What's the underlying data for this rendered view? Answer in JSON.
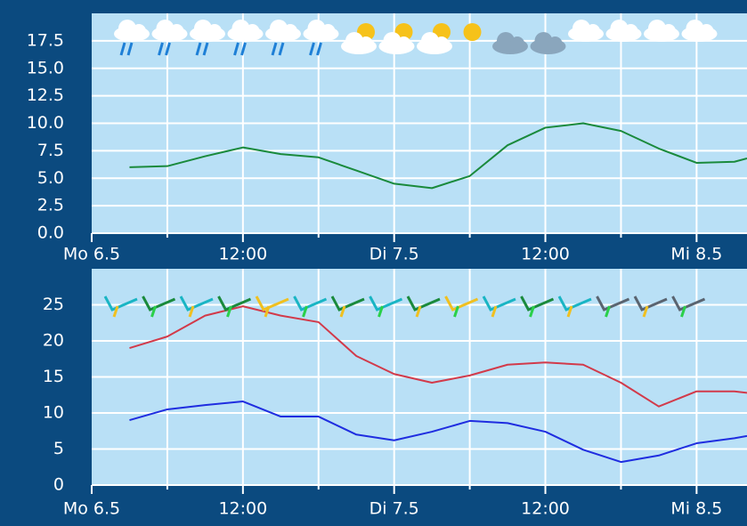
{
  "chart_data": [
    {
      "type": "line",
      "x": [
        3,
        6,
        9,
        12,
        15,
        18,
        21,
        24,
        27,
        30,
        33,
        36,
        39,
        42,
        45,
        48,
        51,
        52
      ],
      "series": [
        {
          "color": "#1a8a3c",
          "values": [
            6.0,
            6.1,
            7.0,
            7.8,
            7.2,
            6.9,
            5.7,
            4.5,
            4.1,
            5.2,
            8.0,
            9.6,
            10.0,
            9.3,
            7.7,
            6.4,
            6.5,
            6.8
          ]
        }
      ],
      "xlim": [
        0,
        52
      ],
      "xticks": [
        {
          "value": 0,
          "label": "Mo 6.5"
        },
        {
          "value": 6,
          "label": null
        },
        {
          "value": 12,
          "label": "12:00"
        },
        {
          "value": 18,
          "label": null
        },
        {
          "value": 24,
          "label": "Di 7.5"
        },
        {
          "value": 30,
          "label": null
        },
        {
          "value": 36,
          "label": "12:00"
        },
        {
          "value": 42,
          "label": null
        },
        {
          "value": 48,
          "label": "Mi 8.5"
        }
      ],
      "ylim": [
        0,
        20
      ],
      "yticks": [
        {
          "value": 0,
          "label": "0.0"
        },
        2.5,
        {
          "value": 5,
          "label": "5.0"
        },
        7.5,
        {
          "value": 10,
          "label": "10.0"
        },
        12.5,
        {
          "value": 15,
          "label": "15.0"
        },
        17.5
      ],
      "grid": true
    },
    {
      "type": "line",
      "x": [
        3,
        6,
        9,
        12,
        15,
        18,
        21,
        24,
        27,
        30,
        33,
        36,
        39,
        42,
        45,
        48,
        51,
        52
      ],
      "series": [
        {
          "color": "#d23a4a",
          "values": [
            19.0,
            20.6,
            23.5,
            24.8,
            23.5,
            22.6,
            17.9,
            15.4,
            14.2,
            15.2,
            16.7,
            17.0,
            16.7,
            14.2,
            10.9,
            13.0,
            13.0,
            12.8
          ]
        },
        {
          "color": "#1f2de0",
          "values": [
            9.0,
            10.5,
            11.1,
            11.6,
            9.5,
            9.5,
            7.0,
            6.2,
            7.4,
            8.9,
            8.6,
            7.4,
            4.9,
            3.2,
            4.1,
            5.8,
            6.5,
            6.8
          ]
        }
      ],
      "xlim": [
        0,
        52
      ],
      "xticks": [
        {
          "value": 0,
          "label": "Mo 6.5"
        },
        {
          "value": 6,
          "label": null
        },
        {
          "value": 12,
          "label": "12:00"
        },
        {
          "value": 18,
          "label": null
        },
        {
          "value": 24,
          "label": "Di 7.5"
        },
        {
          "value": 30,
          "label": null
        },
        {
          "value": 36,
          "label": "12:00"
        },
        {
          "value": 42,
          "label": null
        },
        {
          "value": 48,
          "label": "Mi 8.5"
        }
      ],
      "ylim": [
        0,
        30
      ],
      "yticks": [
        0,
        5,
        10,
        15,
        20,
        25
      ],
      "grid": true
    }
  ]
}
